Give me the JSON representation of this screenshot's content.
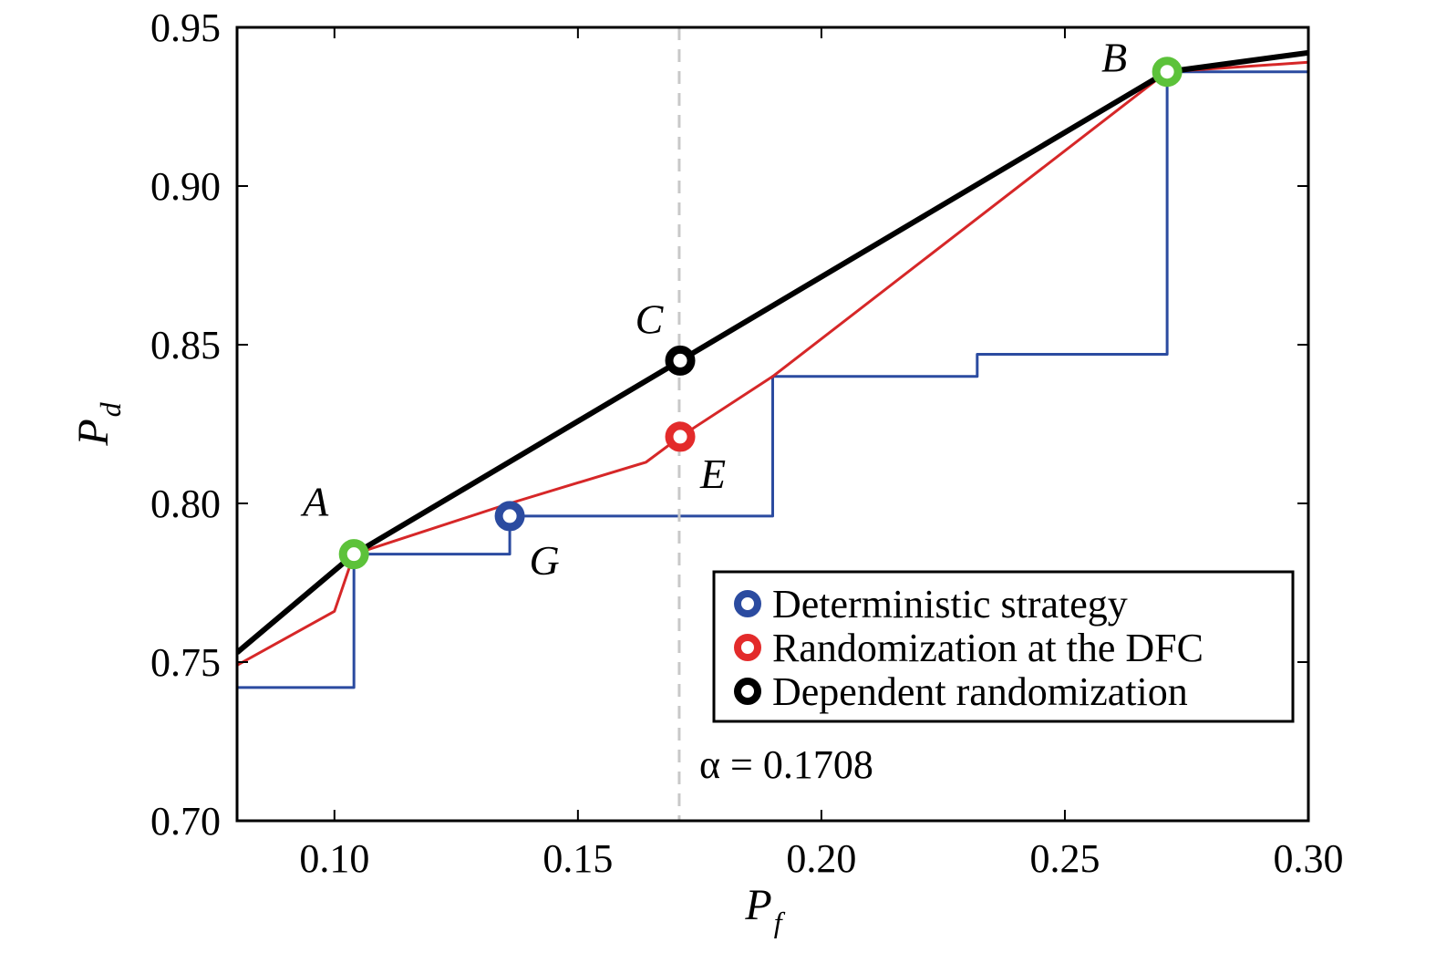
{
  "chart_data": {
    "type": "line",
    "title": "",
    "xlabel": {
      "main": "P",
      "sub": "f"
    },
    "ylabel": {
      "main": "P",
      "sub": "d"
    },
    "xlim": [
      0.08,
      0.3
    ],
    "ylim": [
      0.7,
      0.95
    ],
    "xticks": [
      {
        "value": 0.1,
        "label": "0.10"
      },
      {
        "value": 0.15,
        "label": "0.15"
      },
      {
        "value": 0.2,
        "label": "0.20"
      },
      {
        "value": 0.25,
        "label": "0.25"
      },
      {
        "value": 0.3,
        "label": "0.30"
      }
    ],
    "yticks": [
      {
        "value": 0.7,
        "label": "0.70"
      },
      {
        "value": 0.75,
        "label": "0.75"
      },
      {
        "value": 0.8,
        "label": "0.80"
      },
      {
        "value": 0.85,
        "label": "0.85"
      },
      {
        "value": 0.9,
        "label": "0.90"
      },
      {
        "value": 0.95,
        "label": "0.95"
      }
    ],
    "grid": false,
    "legend_position": "bottom-right",
    "series": [
      {
        "name": "Deterministic strategy",
        "color": "#2b4ba0",
        "marker_color": "#2b4ba0",
        "x": [
          0.08,
          0.104,
          0.104,
          0.136,
          0.136,
          0.19,
          0.19,
          0.232,
          0.232,
          0.271,
          0.271,
          0.3
        ],
        "y": [
          0.742,
          0.742,
          0.784,
          0.784,
          0.796,
          0.796,
          0.84,
          0.84,
          0.847,
          0.847,
          0.936,
          0.936
        ]
      },
      {
        "name": "Randomization at the DFC",
        "color": "#d62728",
        "marker_color": "#e32b2b",
        "x": [
          0.08,
          0.1,
          0.104,
          0.136,
          0.164,
          0.171,
          0.19,
          0.271,
          0.3
        ],
        "y": [
          0.749,
          0.766,
          0.784,
          0.8,
          0.813,
          0.821,
          0.84,
          0.936,
          0.939
        ]
      },
      {
        "name": "Dependent randomization",
        "color": "#000000",
        "marker_color": "#000000",
        "x": [
          0.08,
          0.104,
          0.171,
          0.271,
          0.3
        ],
        "y": [
          0.753,
          0.784,
          0.845,
          0.936,
          0.942
        ]
      }
    ],
    "points": [
      {
        "label": "A",
        "x": 0.104,
        "y": 0.784,
        "color": "#5cc23a",
        "label_dx": -42,
        "label_dy": -42
      },
      {
        "label": "B",
        "x": 0.271,
        "y": 0.936,
        "color": "#5cc23a",
        "label_dx": -58,
        "label_dy": 0
      },
      {
        "label": "C",
        "x": 0.171,
        "y": 0.845,
        "color": "#000000",
        "label_dx": -34,
        "label_dy": -30
      },
      {
        "label": "E",
        "x": 0.171,
        "y": 0.821,
        "color": "#e32b2b",
        "label_dx": 36,
        "label_dy": 56
      },
      {
        "label": "G",
        "x": 0.136,
        "y": 0.796,
        "color": "#2b4ba0",
        "label_dx": 38,
        "label_dy": 64
      }
    ],
    "reference_line": {
      "x": 0.1708,
      "label": "α = 0.1708",
      "color": "#c8c8c8"
    }
  }
}
